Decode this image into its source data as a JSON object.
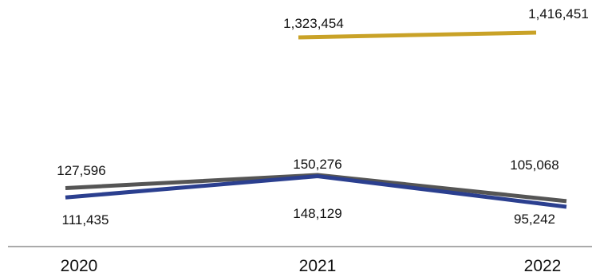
{
  "chart_data": {
    "type": "line",
    "categories": [
      "2020",
      "2021",
      "2022"
    ],
    "series": [
      {
        "key": "gold",
        "color": "#C9A227",
        "values": [
          null,
          1323454,
          1416451
        ],
        "labels": [
          "",
          "1,323,454",
          "1,416,451"
        ]
      },
      {
        "key": "gray",
        "color": "#555555",
        "values": [
          127596,
          150276,
          105068
        ],
        "labels": [
          "127,596",
          "150,276",
          "105,068"
        ]
      },
      {
        "key": "blue",
        "color": "#2B3F8F",
        "values": [
          111435,
          148129,
          95242
        ],
        "labels": [
          "111,435",
          "148,129",
          "95,242"
        ]
      }
    ],
    "title": "",
    "xlabel": "",
    "ylabel": "",
    "grid": false,
    "legend": "none"
  }
}
